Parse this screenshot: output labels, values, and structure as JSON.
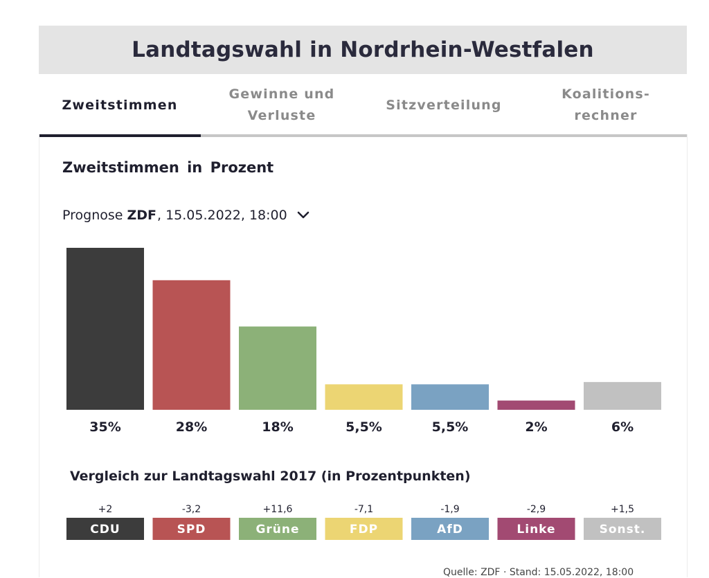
{
  "header": {
    "title": "Landtagswahl in Nordrhein-Westfalen"
  },
  "tabs": [
    {
      "label": "Zweitstimmen",
      "active": true
    },
    {
      "label": "Gewinne und\nVerluste",
      "active": false
    },
    {
      "label": "Sitzverteilung",
      "active": false
    },
    {
      "label": "Koalitions-\nrechner",
      "active": false
    }
  ],
  "panel": {
    "title": "Zweitstimmen in Prozent",
    "source": {
      "prefix": "Prognose",
      "institute": "ZDF",
      "suffix": ", 15.05.2022, 18:00",
      "icon": "chevron-down-icon"
    },
    "comparison_title": "Vergleich zur Landtagswahl 2017 (in Prozentpunkten)",
    "footer_note": "Quelle: ZDF · Stand: 15.05.2022, 18:00"
  },
  "chart_data": {
    "type": "bar",
    "title": "Zweitstimmen in Prozent",
    "categories": [
      "CDU",
      "SPD",
      "Grüne",
      "FDP",
      "AfD",
      "Linke",
      "Sonst."
    ],
    "values": [
      35,
      28,
      18,
      5.5,
      5.5,
      2,
      6
    ],
    "value_labels": [
      "35%",
      "28%",
      "18%",
      "5,5%",
      "5,5%",
      "2%",
      "6%"
    ],
    "changes": [
      "+2",
      "-3,2",
      "+11,6",
      "-7,1",
      "-1,9",
      "-2,9",
      "+1,5"
    ],
    "colors": [
      "#3c3c3c",
      "#b85454",
      "#8cb178",
      "#ecd573",
      "#7aa2c2",
      "#a24a72",
      "#c1c1c1"
    ],
    "ylim": [
      0,
      35
    ],
    "grid": false,
    "xlabel": "",
    "ylabel": ""
  }
}
